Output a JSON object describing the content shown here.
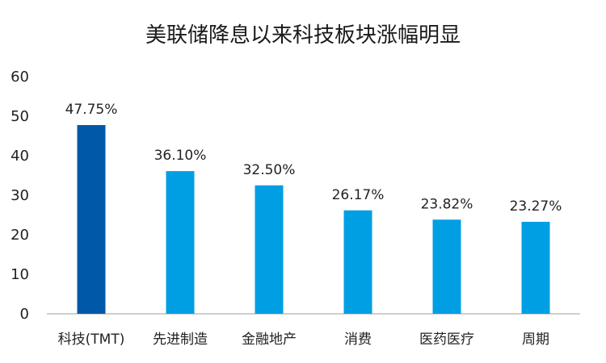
{
  "chart_data": {
    "type": "bar",
    "title": "美联储降息以来科技板块涨幅明显",
    "xlabel": "",
    "ylabel": "",
    "ylim": [
      0,
      60
    ],
    "yticks": [
      0,
      10,
      20,
      30,
      40,
      50,
      60
    ],
    "grid": false,
    "legend": "none",
    "categories": [
      "科技(TMT)",
      "先进制造",
      "金融地产",
      "消费",
      "医药医疗",
      "周期"
    ],
    "values": [
      47.75,
      36.1,
      32.5,
      26.17,
      23.82,
      23.27
    ],
    "value_labels": [
      "47.75%",
      "36.10%",
      "32.50%",
      "26.17%",
      "23.82%",
      "23.27%"
    ],
    "colors": {
      "highlight": "#0059A8",
      "default": "#009FE3",
      "axis": "#BFBFBF"
    }
  }
}
